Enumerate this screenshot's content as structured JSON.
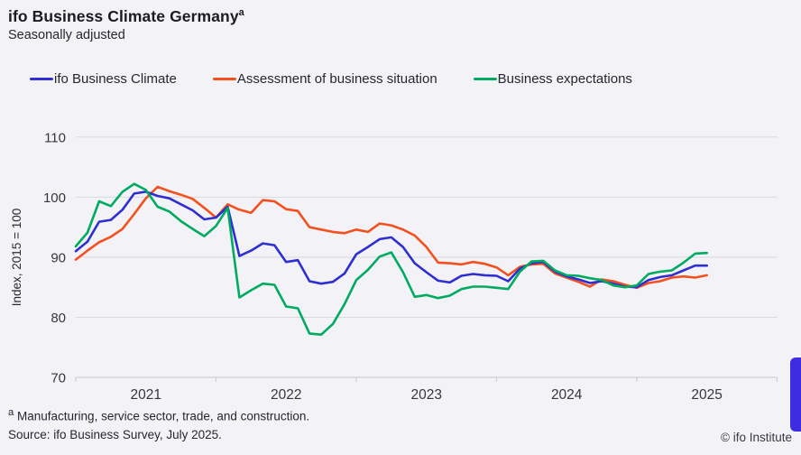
{
  "header": {
    "title": "ifo Business Climate Germany",
    "title_superscript": "a",
    "subtitle": "Seasonally adjusted"
  },
  "footer": {
    "footnote_superscript": "a",
    "footnote_text": " Manufacturing, service sector, trade, and construction.",
    "source": "Source: ifo Business Survey, July 2025.",
    "credit": "© ifo Institute"
  },
  "misc": {
    "background_color": "#f2f2f7",
    "gridline_color": "#d9d9de",
    "axis_color": "#cfcfd5",
    "tick_label_color": "#36363e",
    "corner_tab_color": "#3d2de0"
  },
  "chart_data": {
    "type": "line",
    "title": "ifo Business Climate Germany (seasonally adjusted)",
    "ylabel": "Index, 2015 = 100",
    "ylim": [
      70,
      110
    ],
    "yticks": [
      70,
      80,
      90,
      100,
      110
    ],
    "x_frequency": "monthly",
    "x_start": "2021-01",
    "x_end": "2025-07",
    "x_tick_years": [
      "2021",
      "2022",
      "2023",
      "2024",
      "2025"
    ],
    "grid": "horizontal",
    "legend_position": "top",
    "series": [
      {
        "name": "Assessment of business situation",
        "color": "#f4501e",
        "values": [
          89.6,
          91.1,
          92.5,
          93.4,
          94.7,
          97.2,
          99.8,
          101.7,
          101.0,
          100.4,
          99.7,
          98.2,
          96.6,
          98.8,
          97.9,
          97.4,
          99.5,
          99.3,
          98.0,
          97.7,
          95.0,
          94.6,
          94.2,
          94.0,
          94.6,
          94.2,
          95.6,
          95.3,
          94.6,
          93.6,
          91.7,
          89.1,
          89.0,
          88.8,
          89.2,
          88.9,
          88.3,
          87.0,
          88.4,
          88.8,
          88.9,
          87.3,
          86.6,
          85.9,
          85.1,
          86.3,
          86.0,
          85.4,
          84.9,
          85.7,
          86.0,
          86.6,
          86.8,
          86.6,
          87.0
        ]
      },
      {
        "name": "ifo Business Climate",
        "color": "#2e2ed2",
        "values": [
          91.0,
          92.6,
          95.9,
          96.2,
          97.9,
          100.6,
          100.9,
          100.2,
          99.8,
          98.8,
          97.8,
          96.3,
          96.6,
          98.4,
          90.2,
          91.1,
          92.3,
          92.0,
          89.2,
          89.5,
          86.0,
          85.6,
          85.9,
          87.3,
          90.5,
          91.7,
          93.0,
          93.3,
          91.7,
          89.0,
          87.5,
          86.1,
          85.8,
          86.9,
          87.2,
          87.0,
          86.9,
          86.0,
          88.1,
          89.0,
          89.2,
          87.6,
          86.8,
          86.3,
          85.7,
          86.0,
          85.6,
          85.1,
          85.0,
          86.2,
          86.7,
          87.0,
          87.8,
          88.6,
          88.6
        ]
      },
      {
        "name": "Business expectations",
        "color": "#00ab60",
        "values": [
          91.8,
          94.1,
          99.3,
          98.5,
          100.9,
          102.2,
          101.2,
          98.4,
          97.6,
          96.0,
          94.7,
          93.5,
          95.2,
          98.2,
          83.3,
          84.5,
          85.6,
          85.4,
          81.8,
          81.5,
          77.3,
          77.1,
          78.9,
          82.2,
          86.2,
          87.9,
          90.1,
          90.8,
          87.5,
          83.4,
          83.7,
          83.2,
          83.6,
          84.7,
          85.1,
          85.1,
          84.9,
          84.7,
          87.6,
          89.3,
          89.4,
          87.8,
          87.0,
          86.9,
          86.5,
          86.2,
          85.3,
          85.0,
          85.3,
          87.2,
          87.6,
          87.8,
          89.1,
          90.6,
          90.7
        ]
      }
    ],
    "legend_order": [
      "ifo Business Climate",
      "Assessment of business situation",
      "Business expectations"
    ]
  }
}
